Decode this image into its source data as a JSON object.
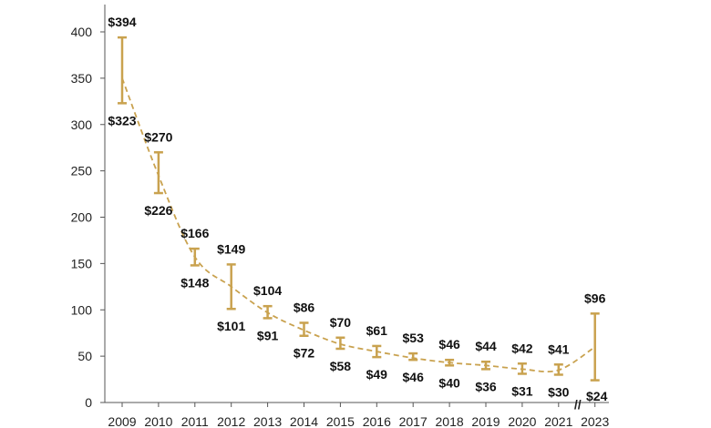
{
  "chart_data": {
    "type": "line",
    "title": "",
    "xlabel": "",
    "ylabel": "",
    "categories": [
      "2009",
      "2010",
      "2011",
      "2012",
      "2013",
      "2014",
      "2015",
      "2016",
      "2017",
      "2018",
      "2019",
      "2020",
      "2021",
      "2023"
    ],
    "series": [
      {
        "high": [
          394,
          270,
          166,
          149,
          104,
          86,
          70,
          61,
          53,
          46,
          44,
          42,
          41,
          96
        ],
        "low": [
          323,
          226,
          148,
          101,
          91,
          72,
          58,
          49,
          46,
          40,
          36,
          31,
          30,
          24
        ],
        "mid": [
          350,
          245,
          157,
          125,
          97,
          78,
          63,
          55,
          48,
          43,
          40,
          36,
          35,
          60
        ]
      }
    ],
    "high_labels": [
      "$394",
      "$270",
      "$166",
      "$149",
      "$104",
      "$86",
      "$70",
      "$61",
      "$53",
      "$46",
      "$44",
      "$42",
      "$41",
      "$96"
    ],
    "low_labels": [
      "$323",
      "$226",
      "$148",
      "$101",
      "$91",
      "$72",
      "$58",
      "$49",
      "$46",
      "$40",
      "$36",
      "$31",
      "$30",
      "$24"
    ],
    "ylim": [
      0,
      400
    ],
    "yticks": [
      "0",
      "50",
      "100",
      "150",
      "200",
      "250",
      "300",
      "350",
      "400"
    ],
    "y_tick_values": [
      0,
      50,
      100,
      150,
      200,
      250,
      300,
      350,
      400
    ],
    "axis_break_marker": "//",
    "grid": false,
    "color": "#C9A24F"
  }
}
